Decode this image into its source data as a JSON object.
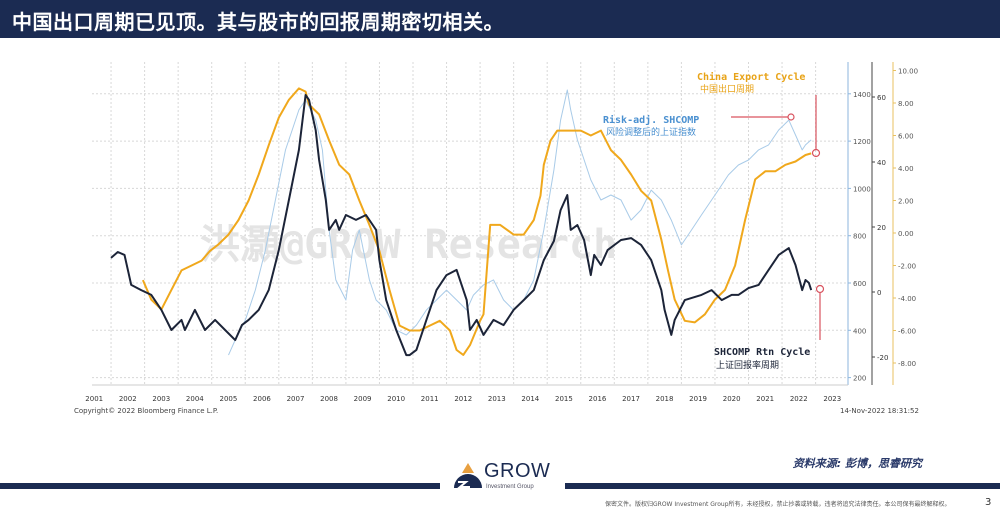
{
  "header": {
    "title": "中国出口周期已见顶。其与股市的回报周期密切相关。"
  },
  "chart_data": {
    "type": "line",
    "title": "",
    "watermark": "洪灝@GROW Research",
    "copyright": "Copyright© 2022 Bloomberg Finance L.P.",
    "timestamp": "14-Nov-2022 18:31:52",
    "grid": true,
    "x_ticks": [
      "2001",
      "2002",
      "2003",
      "2004",
      "2005",
      "2006",
      "2007",
      "2008",
      "2009",
      "2010",
      "2011",
      "2012",
      "2013",
      "2014",
      "2015",
      "2016",
      "2017",
      "2018",
      "2019",
      "2020",
      "2021",
      "2022",
      "2023"
    ],
    "axes": {
      "risk_adj": {
        "ticks": [
          "1400",
          "1200",
          "1000",
          "800",
          "600",
          "400",
          "200"
        ],
        "range": [
          200,
          1400
        ],
        "color": "#5b9bd5"
      },
      "rtn_cycle": {
        "ticks": [
          "60",
          "40",
          "20",
          "0",
          "-20"
        ],
        "range": [
          -20,
          60
        ],
        "color": "#333333"
      },
      "export": {
        "ticks": [
          "10.00",
          "8.00",
          "6.00",
          "4.00",
          "2.00",
          "0.00",
          "-2.00",
          "-4.00",
          "-6.00",
          "-8.00"
        ],
        "range": [
          -8,
          10
        ],
        "color": "#e8a317"
      }
    },
    "series": [
      {
        "name": "SHCOMP Rtn Cycle",
        "name_cn": "上证回报率周期",
        "axis": "rtn_cycle",
        "color": "#1c2438",
        "x": [
          2002.0,
          2002.2,
          2002.4,
          2002.6,
          2002.9,
          2003.2,
          2003.5,
          2003.8,
          2004.1,
          2004.2,
          2004.5,
          2004.8,
          2005.1,
          2005.4,
          2005.7,
          2005.9,
          2006.1,
          2006.4,
          2006.7,
          2007.0,
          2007.3,
          2007.6,
          2007.8,
          2007.9,
          2008.1,
          2008.2,
          2008.4,
          2008.5,
          2008.7,
          2008.8,
          2009.0,
          2009.3,
          2009.6,
          2009.9,
          2010.0,
          2010.2,
          2010.5,
          2010.8,
          2010.9,
          2011.1,
          2011.4,
          2011.7,
          2012.0,
          2012.3,
          2012.6,
          2012.7,
          2012.9,
          2013.1,
          2013.4,
          2013.7,
          2014.0,
          2014.3,
          2014.6,
          2014.9,
          2015.2,
          2015.4,
          2015.6,
          2015.7,
          2015.9,
          2016.1,
          2016.3,
          2016.4,
          2016.6,
          2016.8,
          2017.2,
          2017.5,
          2017.8,
          2018.1,
          2018.4,
          2018.5,
          2018.7,
          2018.8,
          2019.1,
          2019.6,
          2019.9,
          2020.2,
          2020.5,
          2020.7,
          2021.0,
          2021.3,
          2021.6,
          2021.9,
          2022.2,
          2022.4,
          2022.6,
          2022.7,
          2022.8,
          2022.87
        ],
        "y": [
          10.5,
          12.3,
          11.4,
          2.2,
          0.6,
          -0.9,
          -5.5,
          -11.7,
          -8.6,
          -11.7,
          -5.5,
          -11.7,
          -8.6,
          -11.7,
          -14.8,
          -10.2,
          -8.6,
          -5.5,
          0.6,
          12.9,
          28.3,
          43.7,
          60.6,
          59.1,
          49.8,
          40.6,
          28.3,
          19.1,
          22.2,
          19.1,
          23.7,
          22.2,
          23.7,
          19.1,
          9.8,
          -2.5,
          -11.7,
          -19.4,
          -19.4,
          -17.8,
          -8.6,
          0.6,
          5.2,
          6.8,
          -2.5,
          -11.7,
          -8.6,
          -13.2,
          -8.6,
          -10.2,
          -5.5,
          -2.5,
          0.6,
          9.8,
          15.7,
          25.2,
          29.8,
          19.1,
          20.6,
          16.0,
          5.2,
          11.4,
          8.3,
          12.9,
          16.0,
          16.6,
          14.5,
          9.8,
          0.6,
          -5.5,
          -13.2,
          -8.6,
          -2.5,
          -0.9,
          0.6,
          -2.5,
          -0.9,
          -0.9,
          1.2,
          2.2,
          6.8,
          11.4,
          13.5,
          8.3,
          0.6,
          3.7,
          2.8,
          0.6
        ]
      },
      {
        "name": "China Export Cycle",
        "name_cn": "中国出口周期",
        "axis": "export",
        "color": "#f0a81c",
        "x": [
          2002.95,
          2003.2,
          2003.5,
          2003.8,
          2004.1,
          2004.4,
          2004.7,
          2004.95,
          2005.2,
          2005.5,
          2005.8,
          2006.1,
          2006.4,
          2006.7,
          2007.0,
          2007.3,
          2007.6,
          2007.8,
          2007.9,
          2008.2,
          2008.5,
          2008.8,
          2009.1,
          2009.4,
          2009.7,
          2010.0,
          2010.3,
          2010.6,
          2010.9,
          2011.2,
          2011.5,
          2011.8,
          2012.1,
          2012.3,
          2012.5,
          2012.7,
          2013.0,
          2013.1,
          2013.3,
          2013.6,
          2014.0,
          2014.3,
          2014.6,
          2014.8,
          2014.9,
          2015.1,
          2015.3,
          2015.7,
          2016.0,
          2016.3,
          2016.6,
          2016.9,
          2017.2,
          2017.5,
          2017.8,
          2018.1,
          2018.4,
          2018.6,
          2018.8,
          2019.1,
          2019.4,
          2019.7,
          2020.0,
          2020.3,
          2020.6,
          2020.9,
          2021.2,
          2021.5,
          2021.8,
          2022.1,
          2022.4,
          2022.7,
          2022.87
        ],
        "y": [
          -2.9,
          -4.1,
          -4.7,
          -3.5,
          -2.3,
          -2.0,
          -1.7,
          -1.1,
          -0.7,
          -0.1,
          0.8,
          2.0,
          3.6,
          5.4,
          7.1,
          8.2,
          8.9,
          8.7,
          7.9,
          7.3,
          5.7,
          4.2,
          3.6,
          2.0,
          0.5,
          -1.1,
          -3.5,
          -5.7,
          -6.0,
          -6.0,
          -5.7,
          -5.4,
          -6.0,
          -7.2,
          -7.5,
          -6.9,
          -5.4,
          -5.0,
          0.5,
          0.5,
          -0.1,
          -0.1,
          0.8,
          2.3,
          4.2,
          5.7,
          6.3,
          6.3,
          6.3,
          6.0,
          6.3,
          5.1,
          4.5,
          3.6,
          2.6,
          2.0,
          -0.4,
          -2.3,
          -4.1,
          -5.4,
          -5.5,
          -5.0,
          -4.1,
          -3.5,
          -2.0,
          0.8,
          3.3,
          3.8,
          3.8,
          4.2,
          4.4,
          4.8,
          4.9
        ]
      },
      {
        "name": "Risk-adj. SHCOMP",
        "name_cn": "风险调整后的上证指数",
        "axis": "risk_adj",
        "color": "#a9cbe8",
        "x": [
          2005.5,
          2005.7,
          2006.0,
          2006.3,
          2006.6,
          2006.9,
          2007.2,
          2007.4,
          2007.6,
          2007.8,
          2008.1,
          2008.3,
          2008.5,
          2008.7,
          2009.0,
          2009.2,
          2009.4,
          2009.7,
          2009.9,
          2010.2,
          2010.5,
          2010.8,
          2011.1,
          2011.4,
          2011.7,
          2012.0,
          2012.3,
          2012.6,
          2012.8,
          2013.1,
          2013.4,
          2013.7,
          2014.0,
          2014.3,
          2014.6,
          2014.9,
          2015.2,
          2015.4,
          2015.6,
          2015.7,
          2015.9,
          2016.0,
          2016.3,
          2016.6,
          2016.9,
          2017.2,
          2017.5,
          2017.8,
          2018.1,
          2018.4,
          2018.7,
          2019.0,
          2019.3,
          2019.6,
          2019.9,
          2020.1,
          2020.4,
          2020.7,
          2021.0,
          2021.3,
          2021.6,
          2021.9,
          2022.2,
          2022.4,
          2022.6,
          2022.7,
          2022.87
        ],
        "y": [
          295,
          359,
          443,
          570,
          740,
          951,
          1163,
          1247,
          1332,
          1374,
          1289,
          1163,
          824,
          613,
          528,
          740,
          824,
          613,
          528,
          486,
          401,
          380,
          422,
          486,
          528,
          570,
          528,
          486,
          549,
          592,
          613,
          528,
          486,
          528,
          613,
          824,
          1078,
          1289,
          1416,
          1332,
          1205,
          1163,
          1036,
          951,
          972,
          951,
          866,
          909,
          993,
          951,
          866,
          761,
          824,
          888,
          951,
          993,
          1057,
          1099,
          1120,
          1163,
          1184,
          1247,
          1289,
          1226,
          1163,
          1184,
          1205
        ]
      }
    ]
  },
  "footer": {
    "source": "资料来源: 彭博，思睿研究",
    "logo_text": "GROW",
    "logo_sub": "Investment Group",
    "disclaimer": "保密文件。版权归GROW Investment Group所有，未经授权，禁止抄袭或转载，违者将追究法律责任。本公司保有最终解释权。",
    "page_number": "3"
  }
}
